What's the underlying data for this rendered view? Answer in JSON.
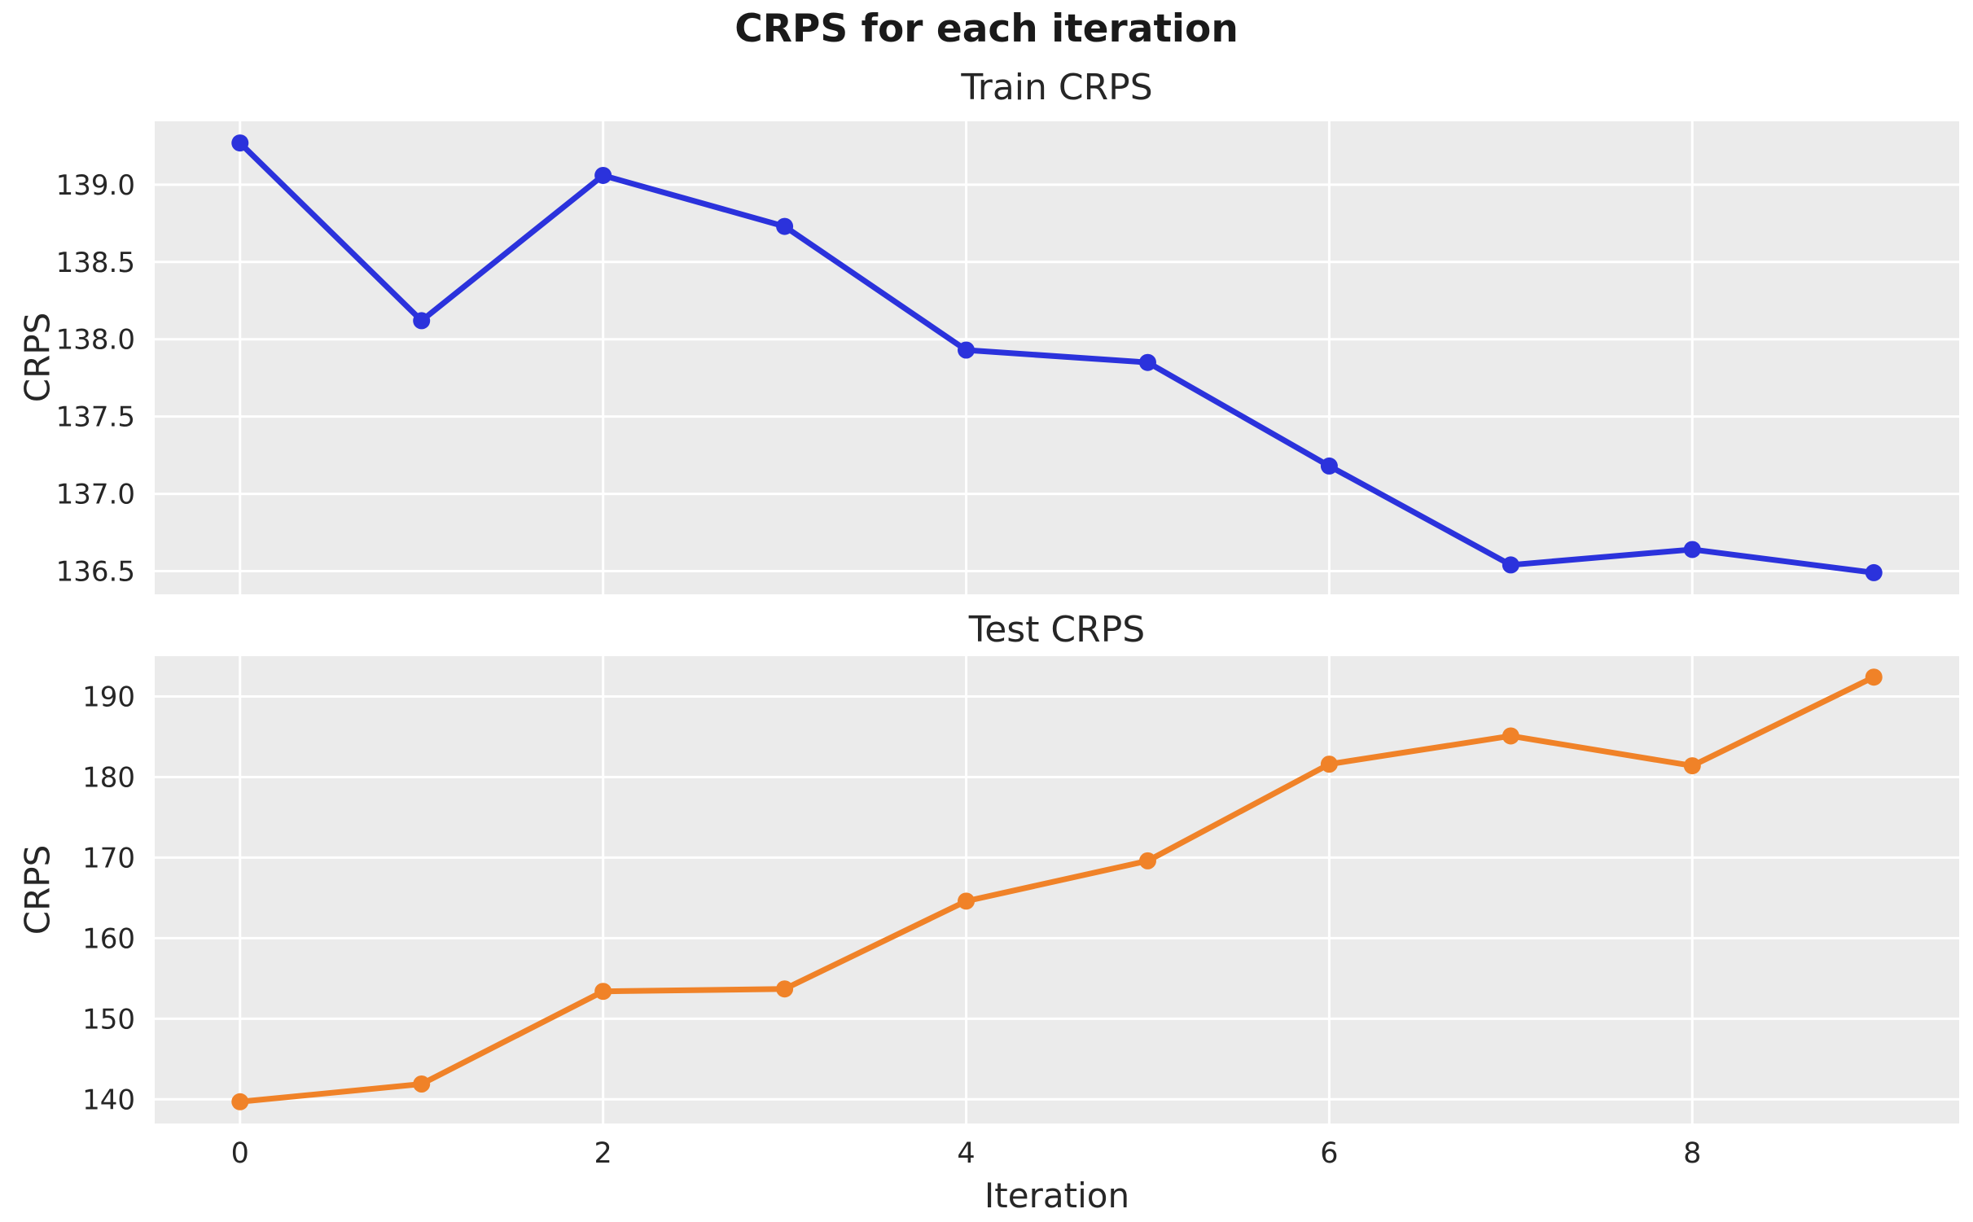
{
  "page": {
    "title": "CRPS for each iteration"
  },
  "palette": {
    "background": "#ffffff",
    "plot_background": "#ebebeb",
    "grid": "#ffffff",
    "text": "#262626",
    "train_line": "#2b32dc",
    "test_line": "#f08228"
  },
  "chart_data": [
    {
      "type": "line",
      "title": "Train CRPS",
      "ylabel": "CRPS",
      "xlabel": "",
      "color": "#2b32dc",
      "x": [
        0,
        1,
        2,
        3,
        4,
        5,
        6,
        7,
        8,
        9
      ],
      "values": [
        139.27,
        138.12,
        139.06,
        138.73,
        137.93,
        137.85,
        137.18,
        136.54,
        136.64,
        136.49
      ],
      "yticks": [
        136.5,
        137.0,
        137.5,
        138.0,
        138.5,
        139.0
      ],
      "ytick_labels": [
        "136.5",
        "137.0",
        "137.5",
        "138.0",
        "138.5",
        "139.0"
      ],
      "xticks": [
        0,
        2,
        4,
        6,
        8
      ],
      "xtick_labels": [],
      "ylim": [
        136.35,
        139.41
      ],
      "xlim": [
        -0.47,
        9.47
      ],
      "grid": true,
      "legend": false
    },
    {
      "type": "line",
      "title": "Test CRPS",
      "ylabel": "CRPS",
      "xlabel": "Iteration",
      "color": "#f08228",
      "x": [
        0,
        1,
        2,
        3,
        4,
        5,
        6,
        7,
        8,
        9
      ],
      "values": [
        139.7,
        141.9,
        153.4,
        153.7,
        164.6,
        169.6,
        181.6,
        185.1,
        181.4,
        192.4
      ],
      "yticks": [
        140,
        150,
        160,
        170,
        180,
        190
      ],
      "ytick_labels": [
        "140",
        "150",
        "160",
        "170",
        "180",
        "190"
      ],
      "xticks": [
        0,
        2,
        4,
        6,
        8
      ],
      "xtick_labels": [
        "0",
        "2",
        "4",
        "6",
        "8"
      ],
      "ylim": [
        137.0,
        195.0
      ],
      "xlim": [
        -0.47,
        9.47
      ],
      "grid": true,
      "legend": false
    }
  ]
}
